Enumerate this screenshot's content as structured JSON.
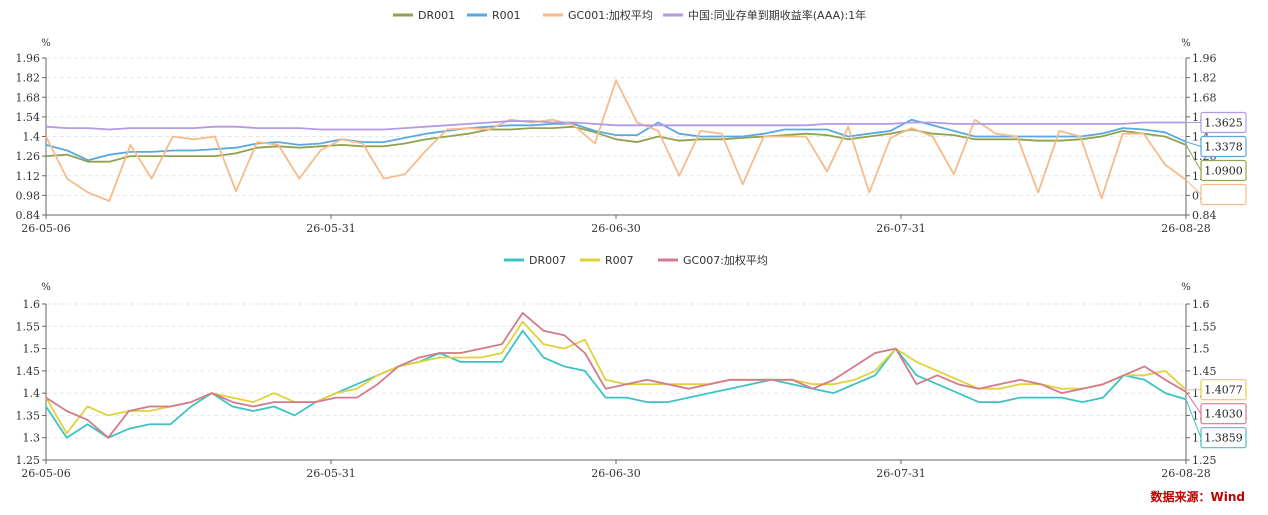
{
  "source_note": "数据来源：Wind",
  "chart_data": [
    {
      "type": "line",
      "unit_left": "%",
      "unit_right": "%",
      "x_ticks": [
        "26-05-06",
        "26-05-31",
        "26-06-30",
        "26-07-31",
        "26-08-28"
      ],
      "y_ticks": [
        "0.84",
        "0.98",
        "1.12",
        "1.26",
        "1.4",
        "1.54",
        "1.68",
        "1.82",
        "1.96"
      ],
      "ylim": [
        0.84,
        1.96
      ],
      "grid": true,
      "legend_position": "top-center",
      "end_labels": [
        "1.3625",
        "1.3378",
        "1.0900"
      ],
      "series": [
        {
          "name": "DR001",
          "color": "#8fa34e",
          "values": [
            1.26,
            1.27,
            1.22,
            1.22,
            1.26,
            1.26,
            1.26,
            1.26,
            1.26,
            1.28,
            1.32,
            1.33,
            1.32,
            1.33,
            1.34,
            1.33,
            1.33,
            1.35,
            1.38,
            1.4,
            1.42,
            1.45,
            1.45,
            1.46,
            1.46,
            1.47,
            1.43,
            1.38,
            1.36,
            1.4,
            1.37,
            1.38,
            1.38,
            1.39,
            1.4,
            1.41,
            1.42,
            1.41,
            1.38,
            1.4,
            1.42,
            1.45,
            1.42,
            1.41,
            1.38,
            1.38,
            1.38,
            1.37,
            1.37,
            1.38,
            1.4,
            1.44,
            1.42,
            1.4,
            1.34
          ]
        },
        {
          "name": "R001",
          "color": "#5aa8e0",
          "values": [
            1.34,
            1.3,
            1.23,
            1.27,
            1.29,
            1.29,
            1.3,
            1.3,
            1.31,
            1.32,
            1.35,
            1.36,
            1.34,
            1.35,
            1.38,
            1.36,
            1.36,
            1.39,
            1.42,
            1.44,
            1.46,
            1.47,
            1.48,
            1.48,
            1.49,
            1.49,
            1.44,
            1.41,
            1.41,
            1.5,
            1.42,
            1.4,
            1.4,
            1.4,
            1.42,
            1.45,
            1.45,
            1.45,
            1.4,
            1.42,
            1.44,
            1.52,
            1.48,
            1.44,
            1.4,
            1.4,
            1.4,
            1.4,
            1.4,
            1.4,
            1.42,
            1.46,
            1.45,
            1.43,
            1.3625
          ]
        },
        {
          "name": "GC001:加权平均",
          "color": "#f7bb8a",
          "values": [
            1.4,
            1.1,
            1.0,
            0.94,
            1.34,
            1.1,
            1.4,
            1.38,
            1.4,
            1.01,
            1.36,
            1.34,
            1.1,
            1.3,
            1.38,
            1.35,
            1.1,
            1.13,
            1.3,
            1.45,
            1.46,
            1.45,
            1.52,
            1.5,
            1.52,
            1.48,
            1.35,
            1.8,
            1.5,
            1.44,
            1.12,
            1.44,
            1.42,
            1.06,
            1.4,
            1.4,
            1.4,
            1.15,
            1.47,
            1.0,
            1.39,
            1.46,
            1.4,
            1.13,
            1.52,
            1.42,
            1.4,
            1.0,
            1.44,
            1.4,
            0.96,
            1.42,
            1.42,
            1.2,
            1.09
          ]
        },
        {
          "name": "中国:同业存单到期收益率(AAA):1年",
          "color": "#b39ae6",
          "values": [
            1.47,
            1.46,
            1.46,
            1.45,
            1.46,
            1.46,
            1.46,
            1.46,
            1.47,
            1.47,
            1.46,
            1.46,
            1.46,
            1.45,
            1.45,
            1.45,
            1.45,
            1.46,
            1.47,
            1.48,
            1.49,
            1.5,
            1.51,
            1.51,
            1.5,
            1.5,
            1.49,
            1.48,
            1.48,
            1.48,
            1.48,
            1.48,
            1.48,
            1.48,
            1.48,
            1.48,
            1.48,
            1.49,
            1.49,
            1.49,
            1.49,
            1.5,
            1.5,
            1.49,
            1.49,
            1.49,
            1.49,
            1.49,
            1.49,
            1.49,
            1.49,
            1.49,
            1.5,
            1.5,
            1.5
          ]
        }
      ]
    },
    {
      "type": "line",
      "unit_left": "%",
      "unit_right": "%",
      "x_ticks": [
        "26-05-06",
        "26-05-31",
        "26-06-30",
        "26-07-31",
        "26-08-28"
      ],
      "y_ticks": [
        "1.25",
        "1.3",
        "1.35",
        "1.4",
        "1.45",
        "1.5",
        "1.55",
        "1.6"
      ],
      "ylim": [
        1.25,
        1.6
      ],
      "grid": true,
      "legend_position": "top-center",
      "end_labels": [
        "1.4077",
        "1.4030",
        "1.3859"
      ],
      "series": [
        {
          "name": "DR007",
          "color": "#3cc4c4",
          "values": [
            1.37,
            1.3,
            1.33,
            1.3,
            1.32,
            1.33,
            1.33,
            1.37,
            1.4,
            1.37,
            1.36,
            1.37,
            1.35,
            1.38,
            1.4,
            1.42,
            1.44,
            1.46,
            1.47,
            1.49,
            1.47,
            1.47,
            1.47,
            1.54,
            1.48,
            1.46,
            1.45,
            1.39,
            1.39,
            1.38,
            1.38,
            1.39,
            1.4,
            1.41,
            1.42,
            1.43,
            1.42,
            1.41,
            1.4,
            1.42,
            1.44,
            1.5,
            1.44,
            1.42,
            1.4,
            1.38,
            1.38,
            1.39,
            1.39,
            1.39,
            1.38,
            1.39,
            1.44,
            1.43,
            1.4,
            1.3859
          ]
        },
        {
          "name": "R007",
          "color": "#e0d23a",
          "values": [
            1.39,
            1.31,
            1.37,
            1.35,
            1.36,
            1.36,
            1.37,
            1.38,
            1.4,
            1.39,
            1.38,
            1.4,
            1.38,
            1.38,
            1.4,
            1.41,
            1.44,
            1.46,
            1.47,
            1.48,
            1.48,
            1.48,
            1.49,
            1.56,
            1.51,
            1.5,
            1.52,
            1.43,
            1.42,
            1.42,
            1.42,
            1.42,
            1.42,
            1.43,
            1.43,
            1.43,
            1.43,
            1.42,
            1.42,
            1.43,
            1.45,
            1.5,
            1.47,
            1.45,
            1.43,
            1.41,
            1.41,
            1.42,
            1.42,
            1.41,
            1.41,
            1.42,
            1.44,
            1.44,
            1.45,
            1.4077
          ]
        },
        {
          "name": "GC007:加权平均",
          "color": "#d47a8a",
          "values": [
            1.39,
            1.36,
            1.34,
            1.3,
            1.36,
            1.37,
            1.37,
            1.38,
            1.4,
            1.38,
            1.37,
            1.38,
            1.38,
            1.38,
            1.39,
            1.39,
            1.42,
            1.46,
            1.48,
            1.49,
            1.49,
            1.5,
            1.51,
            1.58,
            1.54,
            1.53,
            1.49,
            1.41,
            1.42,
            1.43,
            1.42,
            1.41,
            1.42,
            1.43,
            1.43,
            1.43,
            1.43,
            1.41,
            1.43,
            1.46,
            1.49,
            1.5,
            1.42,
            1.44,
            1.42,
            1.41,
            1.42,
            1.43,
            1.42,
            1.4,
            1.41,
            1.42,
            1.44,
            1.46,
            1.43,
            1.403
          ]
        }
      ]
    }
  ]
}
